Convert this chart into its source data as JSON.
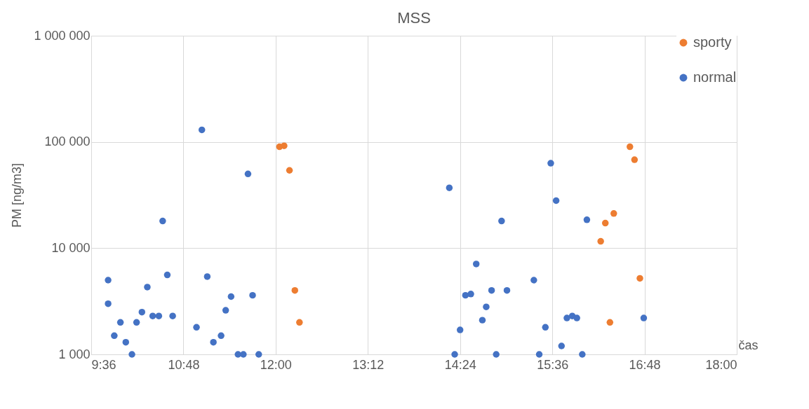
{
  "chart_data": {
    "type": "scatter",
    "title": "MSS",
    "xlabel": "čas",
    "ylabel": "PM [ng/m3]",
    "xlim": [
      9.6,
      18
    ],
    "xticks": [
      {
        "value": 9.6,
        "label": "9:36"
      },
      {
        "value": 10.8,
        "label": "10:48"
      },
      {
        "value": 12,
        "label": "12:00"
      },
      {
        "value": 13.2,
        "label": "13:12"
      },
      {
        "value": 14.4,
        "label": "14:24"
      },
      {
        "value": 15.6,
        "label": "15:36"
      },
      {
        "value": 16.8,
        "label": "16:48"
      },
      {
        "value": 18,
        "label": "18:00"
      }
    ],
    "ylim": [
      1000,
      1000000
    ],
    "yticks": [
      {
        "value": 1000,
        "label": "1 000"
      },
      {
        "value": 10000,
        "label": "10 000"
      },
      {
        "value": 100000,
        "label": "100 000"
      },
      {
        "value": 1000000,
        "label": "1 000 000"
      }
    ],
    "log": "y",
    "grid": true,
    "legend": "top right",
    "marker": "circle",
    "series": [
      {
        "name": "sporty",
        "color": "#ed7d31",
        "x": [
          12.05,
          12.11,
          12.18,
          12.25,
          12.31,
          16.23,
          16.29,
          16.35,
          16.4,
          16.61,
          16.67,
          16.74
        ],
        "values": [
          90000,
          92000,
          54000,
          4000,
          2000,
          11600,
          17200,
          2000,
          21200,
          90000,
          68000,
          5200
        ]
      },
      {
        "name": "normal",
        "color": "#4472c4",
        "x": [
          9.82,
          9.82,
          9.9,
          9.98,
          10.05,
          10.13,
          10.19,
          10.26,
          10.33,
          10.4,
          10.48,
          10.53,
          10.59,
          10.66,
          10.97,
          11.04,
          11.11,
          11.19,
          11.29,
          11.35,
          11.42,
          11.51,
          11.58,
          11.64,
          11.7,
          11.78,
          14.26,
          14.33,
          14.4,
          14.47,
          14.54,
          14.61,
          14.69,
          14.74,
          14.81,
          14.87,
          14.94,
          15.01,
          15.36,
          15.43,
          15.51,
          15.58,
          15.65,
          15.72,
          15.79,
          15.86,
          15.92,
          15.99,
          16.05,
          16.79
        ],
        "values": [
          5000,
          3000,
          1500,
          2000,
          1300,
          1000,
          2000,
          2500,
          4300,
          2300,
          2300,
          18000,
          5600,
          2300,
          1800,
          130000,
          5400,
          1300,
          1500,
          2600,
          3500,
          1000,
          1000,
          50000,
          3600,
          1000,
          37000,
          1000,
          1700,
          3600,
          3700,
          7100,
          2100,
          2800,
          4000,
          1000,
          18000,
          4000,
          5000,
          1000,
          1800,
          63000,
          28000,
          1200,
          2200,
          2300,
          2200,
          1000,
          18500,
          2200
        ]
      }
    ]
  }
}
